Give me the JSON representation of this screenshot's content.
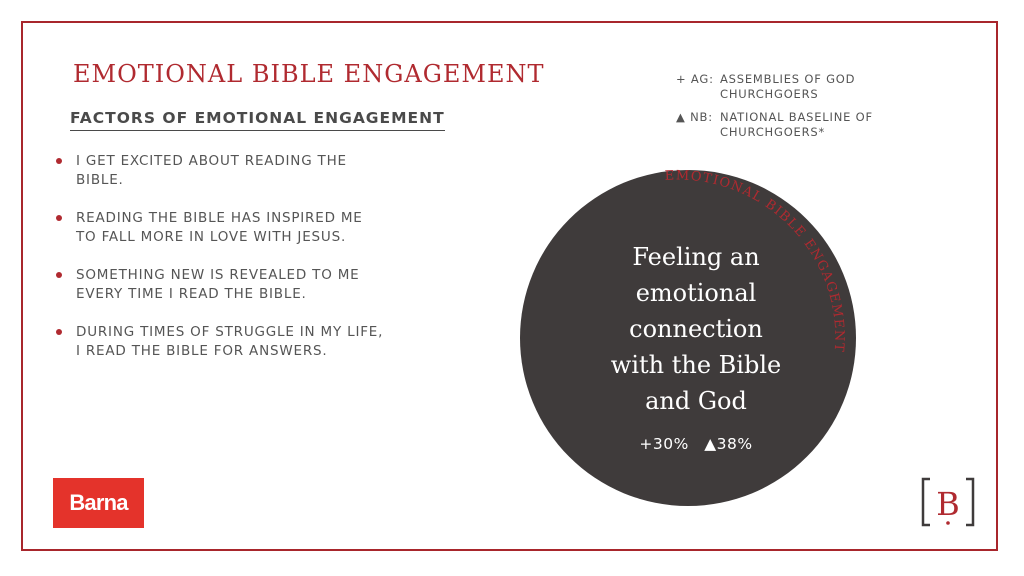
{
  "header": {
    "title": "EMOTIONAL BIBLE ENGAGEMENT",
    "subtitle": "FACTORS OF EMOTIONAL ENGAGEMENT"
  },
  "factors": [
    "I GET EXCITED ABOUT READING THE BIBLE.",
    "READING THE BIBLE HAS INSPIRED ME TO FALL MORE IN LOVE WITH JESUS.",
    "SOMETHING NEW IS REVEALED TO ME EVERY TIME I READ THE BIBLE.",
    "DURING TIMES OF STRUGGLE IN MY LIFE, I READ THE BIBLE FOR ANSWERS."
  ],
  "legend": [
    {
      "key": "+ AG:",
      "text": "ASSEMBLIES OF GOD CHURCHGOERS"
    },
    {
      "key": "▲ NB:",
      "text": "NATIONAL BASELINE OF CHURCHGOERS*"
    }
  ],
  "circle": {
    "arc_label": "EMOTIONAL BIBLE ENGAGEMENT",
    "main_text_lines": [
      "Feeling an",
      "emotional",
      "connection",
      "with the Bible",
      "and God"
    ],
    "ag_stat": "+30%",
    "nb_stat": "▲38%"
  },
  "branding": {
    "logo_text": "Barna",
    "mark_letter": "B"
  },
  "colors": {
    "accent": "#b02a30",
    "circle_fill": "#3f3b3b",
    "logo_red": "#e4332b",
    "text_gray": "#555555"
  }
}
